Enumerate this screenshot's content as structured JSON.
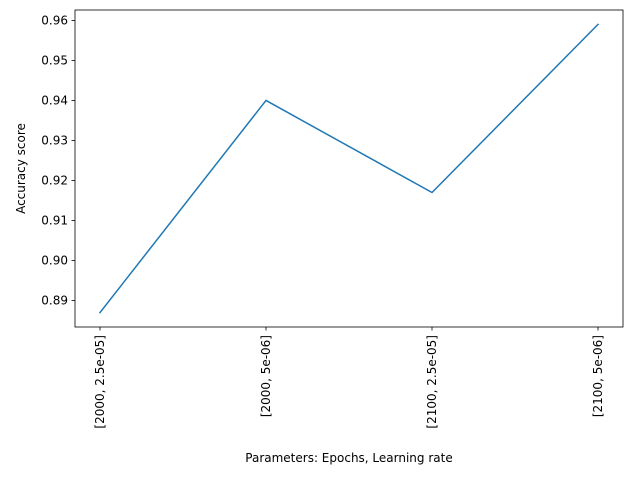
{
  "chart_data": {
    "type": "line",
    "title": "",
    "xlabel": "Parameters: Epochs, Learning rate",
    "ylabel": "Accuracy score",
    "categories": [
      "[2000, 2.5e-05]",
      "[2000, 5e-06]",
      "[2100, 2.5e-05]",
      "[2100, 5e-06]"
    ],
    "series": [
      {
        "values": [
          0.887,
          0.94,
          0.917,
          0.959
        ]
      }
    ],
    "ylim": [
      0.8834,
      0.9626
    ],
    "yticks": [
      0.89,
      0.9,
      0.91,
      0.92,
      0.93,
      0.94,
      0.95,
      0.96
    ],
    "ytick_labels": [
      "0.89",
      "0.90",
      "0.91",
      "0.92",
      "0.93",
      "0.94",
      "0.95",
      "0.96"
    ],
    "grid": false,
    "line_color": "#1f77b4"
  }
}
